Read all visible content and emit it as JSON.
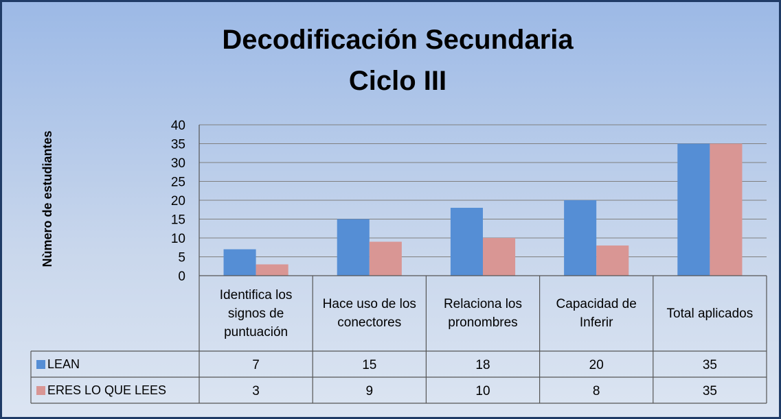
{
  "chart_data": {
    "type": "bar",
    "title": [
      "Decodificación Secundaria",
      "Ciclo III"
    ],
    "y_label": "Nùmero de estudiantes",
    "categories": [
      "Identifica los signos de puntuación",
      "Hace uso de los conectores",
      "Relaciona los pronombres",
      "Capacidad de Inferir",
      "Total aplicados"
    ],
    "series": [
      {
        "name": "LEAN",
        "color": "#558ed5",
        "values": [
          7,
          15,
          18,
          20,
          35
        ]
      },
      {
        "name": "ERES LO QUE LEES",
        "color": "#d99694",
        "values": [
          3,
          9,
          10,
          8,
          35
        ]
      }
    ],
    "ylim": [
      0,
      40
    ],
    "yticks": [
      0,
      5,
      10,
      15,
      20,
      25,
      30,
      35,
      40
    ],
    "grid": true
  }
}
